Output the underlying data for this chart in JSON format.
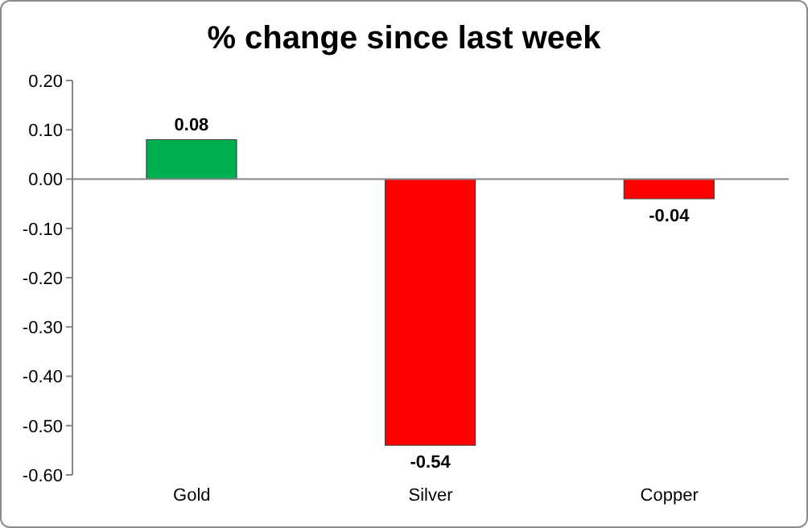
{
  "chart_data": {
    "type": "bar",
    "title": "% change since last week",
    "categories": [
      "Gold",
      "Silver",
      "Copper"
    ],
    "values": [
      0.08,
      -0.54,
      -0.04
    ],
    "colors": [
      "#00b050",
      "#ff0000",
      "#ff0000"
    ],
    "ylim": [
      -0.6,
      0.2
    ],
    "yticks": [
      {
        "value": 0.2,
        "label": "0.20"
      },
      {
        "value": 0.1,
        "label": "0.10"
      },
      {
        "value": 0,
        "label": "0.00"
      },
      {
        "value": -0.1,
        "label": "-0.10"
      },
      {
        "value": -0.2,
        "label": "-0.20"
      },
      {
        "value": -0.3,
        "label": "-0.30"
      },
      {
        "value": -0.4,
        "label": "-0.40"
      },
      {
        "value": -0.5,
        "label": "-0.50"
      },
      {
        "value": -0.6,
        "label": "-0.60"
      }
    ],
    "data_labels": true,
    "ref_lines": [
      {
        "axis": "y",
        "value": 0,
        "color": "#868686"
      }
    ],
    "grid": false,
    "legend": false
  }
}
